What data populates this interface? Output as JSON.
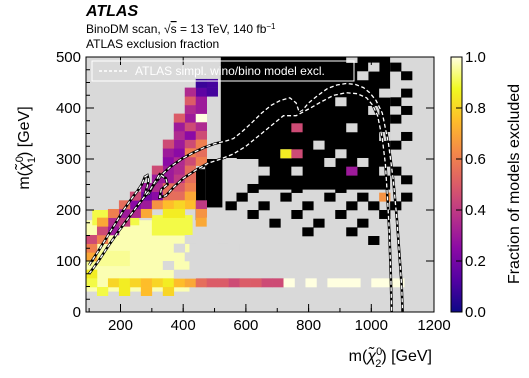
{
  "header": {
    "experiment": "ATLAS",
    "scan_prefix": "BinoDM scan, ",
    "sqrt_symbol": "√",
    "sqrt_arg": "s",
    "energy": " = 13 TeV, 140 fb",
    "lumi_exp": "−1",
    "subtitle": "ATLAS exclusion fraction"
  },
  "colors": {
    "unexcluded": "#d9d9d9",
    "fully_excluded": "#000000",
    "background": "#ffffff",
    "contour": "#ffffff"
  },
  "chart_data": {
    "type": "heatmap",
    "xlabel_main": "m(",
    "xlabel_particle": "χ̃",
    "xlabel_sub": "2",
    "xlabel_sup": "0",
    "xlabel_unit": ") [GeV]",
    "ylabel_main": "m(",
    "ylabel_particle": "χ̃",
    "ylabel_sub": "1",
    "ylabel_sup": "0",
    "ylabel_unit": ") [GeV]",
    "xlim": [
      90,
      1200
    ],
    "ylim": [
      0,
      500
    ],
    "xticks": [
      {
        "value": 200,
        "label": "200"
      },
      {
        "value": 400,
        "label": "400"
      },
      {
        "value": 600,
        "label": "600"
      },
      {
        "value": 800,
        "label": "800"
      },
      {
        "value": 1000,
        "label": "1000"
      },
      {
        "value": 1200,
        "label": "1200"
      }
    ],
    "yticks": [
      {
        "value": 0,
        "label": "0"
      },
      {
        "value": 100,
        "label": "100"
      },
      {
        "value": 200,
        "label": "200"
      },
      {
        "value": 300,
        "label": "300"
      },
      {
        "value": 400,
        "label": "400"
      },
      {
        "value": 500,
        "label": "500"
      }
    ],
    "colorbar": {
      "label": "Fraction of models excluded",
      "min": 0.0,
      "max": 1.0,
      "ticks": [
        {
          "value": 0.0,
          "label": "0.0"
        },
        {
          "value": 0.2,
          "label": "0.2"
        },
        {
          "value": 0.4,
          "label": "0.4"
        },
        {
          "value": 0.6,
          "label": "0.6"
        },
        {
          "value": 0.8,
          "label": "0.8"
        },
        {
          "value": 1.0,
          "label": "1.0"
        }
      ],
      "colormap": [
        "#0d0887",
        "#5302a3",
        "#8b0aa5",
        "#b83289",
        "#db5c68",
        "#f48849",
        "#febd2a",
        "#f0f921",
        "#ffffe0"
      ]
    },
    "legend": {
      "label": "ATLAS simpl. wino/bino model excl.",
      "position": "top-left",
      "style": "white dashed line"
    },
    "grid": false,
    "bin_width_x": 35,
    "bin_width_y": 17,
    "regions": [
      {
        "note_free": true,
        "x0": 90,
        "x1": 1200,
        "y0": 0,
        "y1": 500,
        "value": 0.0
      },
      {
        "x0": 90,
        "x1": 420,
        "y0": 40,
        "y1": 180,
        "value": 0.97
      },
      {
        "x0": 110,
        "x1": 260,
        "y0": 170,
        "y1": 200,
        "value": 0.9
      },
      {
        "x0": 300,
        "x1": 430,
        "y0": 150,
        "y1": 190,
        "value": 0.9
      },
      {
        "x0": 90,
        "x1": 230,
        "y0": 90,
        "y1": 120,
        "value": 0.95
      }
    ],
    "cells": [
      {
        "x": 90,
        "y": 100,
        "value": 0.7
      },
      {
        "x": 90,
        "y": 117,
        "value": 0.6
      },
      {
        "x": 90,
        "y": 134,
        "value": 0.45
      },
      {
        "x": 125,
        "y": 134,
        "value": 0.6
      },
      {
        "x": 125,
        "y": 151,
        "value": 0.45
      },
      {
        "x": 160,
        "y": 151,
        "value": 0.3
      },
      {
        "x": 160,
        "y": 168,
        "value": 0.35
      },
      {
        "x": 195,
        "y": 168,
        "value": 0.4
      },
      {
        "x": 195,
        "y": 185,
        "value": 0.3
      },
      {
        "x": 230,
        "y": 185,
        "value": 0.35
      },
      {
        "x": 230,
        "y": 202,
        "value": 0.25
      },
      {
        "x": 265,
        "y": 202,
        "value": 0.3
      },
      {
        "x": 265,
        "y": 219,
        "value": 0.2
      },
      {
        "x": 300,
        "y": 219,
        "value": 0.25
      },
      {
        "x": 300,
        "y": 236,
        "value": 0.35
      },
      {
        "x": 300,
        "y": 253,
        "value": 0.3
      },
      {
        "x": 335,
        "y": 236,
        "value": 0.55
      },
      {
        "x": 335,
        "y": 253,
        "value": 0.3
      },
      {
        "x": 335,
        "y": 270,
        "value": 0.3
      },
      {
        "x": 335,
        "y": 287,
        "value": 0.25
      },
      {
        "x": 335,
        "y": 304,
        "value": 0.3
      },
      {
        "x": 370,
        "y": 287,
        "value": 0.35
      },
      {
        "x": 370,
        "y": 304,
        "value": 0.25
      },
      {
        "x": 370,
        "y": 321,
        "value": 0.3
      },
      {
        "x": 370,
        "y": 338,
        "value": 0.35
      },
      {
        "x": 370,
        "y": 355,
        "value": 0.3
      },
      {
        "x": 405,
        "y": 321,
        "value": 0.45
      },
      {
        "x": 405,
        "y": 338,
        "value": 0.25
      },
      {
        "x": 405,
        "y": 355,
        "value": 0.45
      },
      {
        "x": 405,
        "y": 372,
        "value": 0.3
      },
      {
        "x": 405,
        "y": 389,
        "value": 0.35
      },
      {
        "x": 405,
        "y": 406,
        "value": 0.5
      },
      {
        "x": 440,
        "y": 372,
        "value": 1.0
      },
      {
        "x": 440,
        "y": 389,
        "value": 0.3
      },
      {
        "x": 440,
        "y": 406,
        "value": 0.3
      },
      {
        "x": 440,
        "y": 423,
        "value": 0.15
      },
      {
        "x": 475,
        "y": 423,
        "value": 0.1
      },
      {
        "x": 475,
        "y": 440,
        "value": 0.1
      },
      {
        "x": 440,
        "y": 440,
        "value": 0.08
      },
      {
        "x": 405,
        "y": 423,
        "value": 0.35
      },
      {
        "x": 370,
        "y": 372,
        "value": 0.5
      },
      {
        "x": 335,
        "y": 321,
        "value": 0.45
      },
      {
        "x": 300,
        "y": 270,
        "value": 0.45
      },
      {
        "x": 265,
        "y": 236,
        "value": 0.3
      },
      {
        "x": 230,
        "y": 219,
        "value": 0.45
      },
      {
        "x": 195,
        "y": 202,
        "value": 0.55
      },
      {
        "x": 160,
        "y": 185,
        "value": 0.6
      },
      {
        "x": 125,
        "y": 168,
        "value": 0.7
      },
      {
        "x": 370,
        "y": 253,
        "value": 0.4
      },
      {
        "x": 370,
        "y": 270,
        "value": 0.35
      },
      {
        "x": 405,
        "y": 287,
        "value": 0.45
      },
      {
        "x": 405,
        "y": 304,
        "value": 0.6
      },
      {
        "x": 440,
        "y": 355,
        "value": 0.35
      },
      {
        "x": 440,
        "y": 338,
        "value": 0.45
      },
      {
        "x": 335,
        "y": 219,
        "value": 0.55
      },
      {
        "x": 300,
        "y": 202,
        "value": 0.65
      },
      {
        "x": 265,
        "y": 185,
        "value": 0.7
      },
      {
        "x": 370,
        "y": 236,
        "value": 0.5
      },
      {
        "x": 405,
        "y": 270,
        "value": 0.55
      },
      {
        "x": 440,
        "y": 321,
        "value": 0.6
      },
      {
        "x": 440,
        "y": 304,
        "value": 0.55
      },
      {
        "x": 440,
        "y": 287,
        "value": 0.6
      },
      {
        "x": 405,
        "y": 253,
        "value": 0.55
      },
      {
        "x": 370,
        "y": 219,
        "value": 0.55
      },
      {
        "x": 405,
        "y": 236,
        "value": 0.6
      },
      {
        "x": 405,
        "y": 219,
        "value": 0.7
      },
      {
        "x": 405,
        "y": 202,
        "value": 0.75
      },
      {
        "x": 335,
        "y": 202,
        "value": 0.75
      },
      {
        "x": 370,
        "y": 202,
        "value": 0.8
      },
      {
        "x": 370,
        "y": 185,
        "value": 0.85
      },
      {
        "x": 335,
        "y": 185,
        "value": 0.85
      },
      {
        "x": 440,
        "y": 202,
        "value": 0.4
      },
      {
        "x": 440,
        "y": 185,
        "value": 0.65
      },
      {
        "x": 440,
        "y": 168,
        "value": 0.7
      },
      {
        "x": 475,
        "y": 168,
        "value": 0.0
      },
      {
        "x": 90,
        "y": 66,
        "value": 0.85
      },
      {
        "x": 90,
        "y": 49,
        "value": 0.9
      },
      {
        "x": 160,
        "y": 49,
        "value": 0.8
      },
      {
        "x": 195,
        "y": 49,
        "value": 0.85
      },
      {
        "x": 230,
        "y": 49,
        "value": 0.8
      },
      {
        "x": 265,
        "y": 49,
        "value": 0.75
      },
      {
        "x": 300,
        "y": 49,
        "value": 0.8
      },
      {
        "x": 335,
        "y": 49,
        "value": 0.85
      },
      {
        "x": 370,
        "y": 49,
        "value": 0.75
      },
      {
        "x": 405,
        "y": 49,
        "value": 0.7
      },
      {
        "x": 440,
        "y": 49,
        "value": 0.55
      },
      {
        "x": 475,
        "y": 49,
        "value": 0.5
      },
      {
        "x": 510,
        "y": 49,
        "value": 0.5
      },
      {
        "x": 545,
        "y": 49,
        "value": 0.45
      },
      {
        "x": 580,
        "y": 49,
        "value": 0.5
      },
      {
        "x": 615,
        "y": 49,
        "value": 0.5
      },
      {
        "x": 650,
        "y": 49,
        "value": 0.45
      },
      {
        "x": 685,
        "y": 49,
        "value": 0.45
      },
      {
        "x": 720,
        "y": 49,
        "value": 1.0
      },
      {
        "x": 790,
        "y": 49,
        "value": 1.0
      },
      {
        "x": 860,
        "y": 49,
        "value": 1.0
      },
      {
        "x": 895,
        "y": 49,
        "value": 1.0
      },
      {
        "x": 930,
        "y": 49,
        "value": 1.0
      },
      {
        "x": 1000,
        "y": 49,
        "value": 1.0
      },
      {
        "x": 1035,
        "y": 49,
        "value": 1.0
      },
      {
        "x": 1070,
        "y": 49,
        "value": 1.0
      },
      {
        "x": 125,
        "y": 32,
        "value": 0.9
      },
      {
        "x": 195,
        "y": 32,
        "value": 0.85
      },
      {
        "x": 265,
        "y": 32,
        "value": 0.75
      },
      {
        "x": 335,
        "y": 32,
        "value": 0.8
      },
      {
        "x": 370,
        "y": 66,
        "value": 0.0
      },
      {
        "x": 405,
        "y": 100,
        "value": 0.0
      },
      {
        "x": 405,
        "y": 134,
        "value": 0.0
      },
      {
        "x": 440,
        "y": 117,
        "value": 0.0
      },
      {
        "x": 370,
        "y": 117,
        "value": 0.0
      },
      {
        "x": 335,
        "y": 83,
        "value": 0.0
      },
      {
        "x": 405,
        "y": 66,
        "value": 0.0
      },
      {
        "x": 510,
        "y": 134,
        "value": 0.0
      },
      {
        "x": 545,
        "y": 117,
        "value": 0.0
      }
    ],
    "black_region": [
      {
        "x0": 520,
        "x1": 1060,
        "y0": 300,
        "y1": 500
      },
      {
        "x0": 640,
        "x1": 1060,
        "y0": 240,
        "y1": 300
      },
      {
        "x0": 470,
        "x1": 525,
        "y0": 205,
        "y1": 300
      },
      {
        "x0": 440,
        "x1": 470,
        "y0": 180,
        "y1": 280
      }
    ],
    "black_cells": [
      {
        "x": 1060,
        "y": 472
      },
      {
        "x": 1095,
        "y": 455
      },
      {
        "x": 1095,
        "y": 421
      },
      {
        "x": 1060,
        "y": 404
      },
      {
        "x": 1095,
        "y": 387
      },
      {
        "x": 1060,
        "y": 370
      },
      {
        "x": 1095,
        "y": 336
      },
      {
        "x": 1060,
        "y": 319
      },
      {
        "x": 1060,
        "y": 268
      },
      {
        "x": 1095,
        "y": 251
      },
      {
        "x": 1095,
        "y": 217
      },
      {
        "x": 1060,
        "y": 200
      },
      {
        "x": 1025,
        "y": 183
      },
      {
        "x": 990,
        "y": 200
      },
      {
        "x": 955,
        "y": 217
      },
      {
        "x": 920,
        "y": 200
      },
      {
        "x": 885,
        "y": 234
      },
      {
        "x": 850,
        "y": 217
      },
      {
        "x": 815,
        "y": 251
      },
      {
        "x": 780,
        "y": 200
      },
      {
        "x": 745,
        "y": 234
      },
      {
        "x": 710,
        "y": 217
      },
      {
        "x": 675,
        "y": 251
      },
      {
        "x": 640,
        "y": 200
      },
      {
        "x": 605,
        "y": 234
      },
      {
        "x": 570,
        "y": 217
      },
      {
        "x": 535,
        "y": 200
      },
      {
        "x": 955,
        "y": 166
      },
      {
        "x": 885,
        "y": 183
      },
      {
        "x": 815,
        "y": 166
      },
      {
        "x": 745,
        "y": 183
      },
      {
        "x": 990,
        "y": 132
      },
      {
        "x": 920,
        "y": 149
      },
      {
        "x": 780,
        "y": 149
      },
      {
        "x": 675,
        "y": 166
      },
      {
        "x": 605,
        "y": 183
      }
    ],
    "grey_in_black": [
      {
        "x": 920,
        "y": 489
      },
      {
        "x": 990,
        "y": 472
      },
      {
        "x": 955,
        "y": 455
      },
      {
        "x": 1025,
        "y": 421
      },
      {
        "x": 885,
        "y": 404
      },
      {
        "x": 990,
        "y": 387
      },
      {
        "x": 920,
        "y": 353
      },
      {
        "x": 1025,
        "y": 336
      },
      {
        "x": 815,
        "y": 319
      },
      {
        "x": 885,
        "y": 302
      },
      {
        "x": 955,
        "y": 285
      },
      {
        "x": 1025,
        "y": 268
      },
      {
        "x": 710,
        "y": 302
      },
      {
        "x": 640,
        "y": 268
      },
      {
        "x": 570,
        "y": 268
      },
      {
        "x": 535,
        "y": 285
      },
      {
        "x": 745,
        "y": 268
      },
      {
        "x": 850,
        "y": 285
      }
    ],
    "highlight_cells": [
      {
        "x": 745,
        "y": 353,
        "value": 0.45
      },
      {
        "x": 710,
        "y": 302,
        "value": 0.85
      },
      {
        "x": 745,
        "y": 302,
        "value": 0.45
      },
      {
        "x": 1025,
        "y": 217,
        "value": 0.65
      },
      {
        "x": 920,
        "y": 268,
        "value": 0.3
      }
    ],
    "contour": [
      [
        100,
        92
      ],
      [
        130,
        120
      ],
      [
        160,
        150
      ],
      [
        185,
        175
      ],
      [
        210,
        200
      ],
      [
        235,
        222
      ],
      [
        255,
        238
      ],
      [
        268,
        250
      ],
      [
        278,
        265
      ],
      [
        286,
        268
      ],
      [
        290,
        258
      ],
      [
        284,
        243
      ],
      [
        278,
        230
      ],
      [
        290,
        232
      ],
      [
        305,
        248
      ],
      [
        330,
        268
      ],
      [
        360,
        285
      ],
      [
        395,
        300
      ],
      [
        430,
        312
      ],
      [
        465,
        322
      ],
      [
        500,
        330
      ],
      [
        535,
        335
      ],
      [
        560,
        340
      ],
      [
        590,
        355
      ],
      [
        620,
        372
      ],
      [
        650,
        390
      ],
      [
        680,
        405
      ],
      [
        710,
        415
      ],
      [
        740,
        420
      ],
      [
        760,
        410
      ],
      [
        770,
        392
      ],
      [
        780,
        395
      ],
      [
        800,
        410
      ],
      [
        830,
        425
      ],
      [
        860,
        438
      ],
      [
        890,
        445
      ],
      [
        920,
        448
      ],
      [
        950,
        446
      ],
      [
        975,
        440
      ],
      [
        995,
        430
      ],
      [
        1015,
        415
      ],
      [
        1035,
        390
      ],
      [
        1055,
        330
      ],
      [
        1070,
        260
      ],
      [
        1082,
        180
      ],
      [
        1090,
        110
      ],
      [
        1097,
        50
      ],
      [
        1100,
        0
      ]
    ],
    "contour_lower": [
      [
        100,
        75
      ],
      [
        130,
        100
      ],
      [
        160,
        128
      ],
      [
        190,
        155
      ],
      [
        220,
        180
      ],
      [
        250,
        205
      ],
      [
        275,
        225
      ],
      [
        295,
        240
      ],
      [
        310,
        255
      ],
      [
        325,
        270
      ],
      [
        345,
        262
      ],
      [
        350,
        250
      ],
      [
        330,
        240
      ],
      [
        325,
        225
      ],
      [
        345,
        228
      ],
      [
        370,
        245
      ],
      [
        400,
        262
      ],
      [
        440,
        278
      ],
      [
        480,
        292
      ],
      [
        520,
        300
      ],
      [
        560,
        310
      ],
      [
        600,
        325
      ],
      [
        640,
        345
      ],
      [
        680,
        365
      ],
      [
        720,
        385
      ],
      [
        760,
        385
      ],
      [
        800,
        398
      ],
      [
        840,
        412
      ],
      [
        880,
        425
      ],
      [
        920,
        430
      ],
      [
        955,
        428
      ],
      [
        985,
        420
      ],
      [
        1005,
        405
      ],
      [
        1020,
        385
      ],
      [
        1035,
        340
      ],
      [
        1045,
        290
      ],
      [
        1052,
        220
      ],
      [
        1058,
        150
      ],
      [
        1062,
        80
      ],
      [
        1065,
        0
      ]
    ]
  }
}
